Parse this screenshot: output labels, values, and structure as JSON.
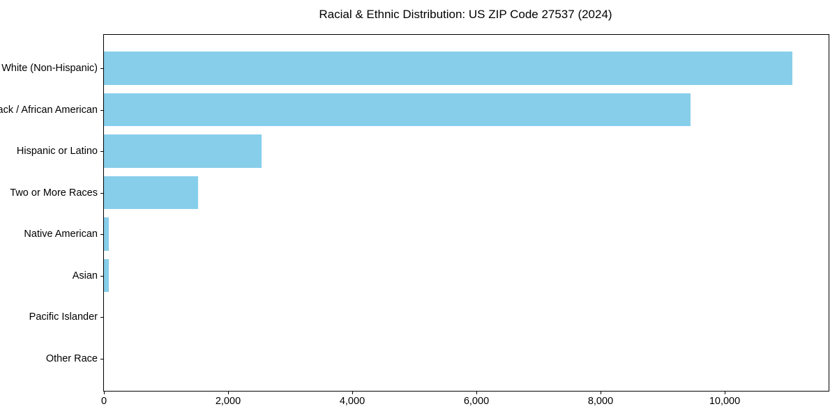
{
  "title": "Racial & Ethnic Distribution: US ZIP Code 27537 (2024)",
  "colors": {
    "bar": "#87CEEB",
    "axis": "#000000",
    "text": "#000000",
    "background": "#FFFFFF"
  },
  "chart_data": {
    "type": "bar",
    "orientation": "horizontal",
    "title": "Racial & Ethnic Distribution: US ZIP Code 27537 (2024)",
    "categories": [
      "White (Non-Hispanic)",
      "Black / African American",
      "Hispanic or Latino",
      "Two or More Races",
      "Native American",
      "Asian",
      "Pacific Islander",
      "Other Race"
    ],
    "values": [
      11090,
      9450,
      2540,
      1520,
      80,
      75,
      0,
      0
    ],
    "xlabel": "",
    "ylabel": "",
    "xlim": [
      0,
      11674
    ],
    "x_ticks": [
      0,
      2000,
      4000,
      6000,
      8000,
      10000
    ],
    "x_tick_labels": [
      "0",
      "2,000",
      "4,000",
      "6,000",
      "8,000",
      "10,000"
    ],
    "bar_color": "#87CEEB",
    "grid": false,
    "legend": null,
    "frame": "full-box"
  }
}
